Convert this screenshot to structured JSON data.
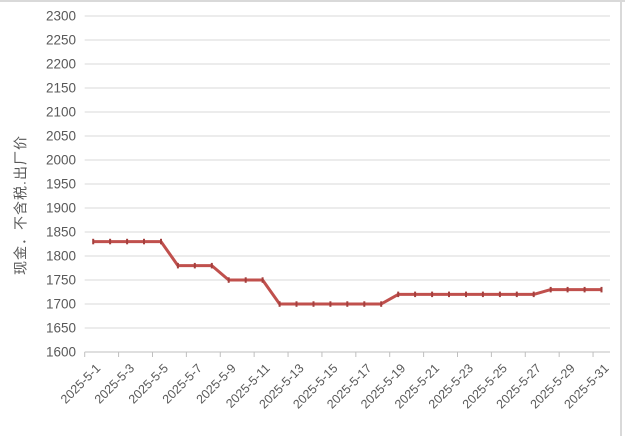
{
  "chart": {
    "y_axis_title": "现金．不含税.出厂价",
    "colors": {
      "line": "#c0504d",
      "marker": "#a5403e",
      "gridline": "#d9d9d9",
      "axis_line": "#bfbfbf",
      "tick_label": "#595959",
      "chart_border": "#d9d9d9",
      "background": "#ffffff"
    }
  },
  "chart_data": {
    "type": "line",
    "title": "",
    "ylabel": "现金．不含税.出厂价",
    "xlabel": "",
    "legend": "none",
    "grid": "horizontal",
    "ylim": [
      1600,
      2300
    ],
    "y_tick_step": 50,
    "y_tick_labels": [
      "2300",
      "2250",
      "2200",
      "2150",
      "2100",
      "2050",
      "2000",
      "1950",
      "1900",
      "1850",
      "1800",
      "1750",
      "1700",
      "1650",
      "1600"
    ],
    "x_tick_labels": [
      "2025-5-1",
      "2025-5-3",
      "2025-5-5",
      "2025-5-7",
      "2025-5-9",
      "2025-5-11",
      "2025-5-13",
      "2025-5-15",
      "2025-5-17",
      "2025-5-19",
      "2025-5-21",
      "2025-5-23",
      "2025-5-25",
      "2025-5-27",
      "2025-5-29",
      "2025-5-31"
    ],
    "x": [
      "2025-5-1",
      "2025-5-2",
      "2025-5-3",
      "2025-5-4",
      "2025-5-5",
      "2025-5-6",
      "2025-5-7",
      "2025-5-8",
      "2025-5-9",
      "2025-5-10",
      "2025-5-11",
      "2025-5-12",
      "2025-5-13",
      "2025-5-14",
      "2025-5-15",
      "2025-5-16",
      "2025-5-17",
      "2025-5-18",
      "2025-5-19",
      "2025-5-20",
      "2025-5-21",
      "2025-5-22",
      "2025-5-23",
      "2025-5-24",
      "2025-5-25",
      "2025-5-26",
      "2025-5-27",
      "2025-5-28",
      "2025-5-29",
      "2025-5-30",
      "2025-5-31"
    ],
    "series": [
      {
        "name": "现金．不含税.出厂价",
        "values": [
          1830,
          1830,
          1830,
          1830,
          1830,
          1780,
          1780,
          1780,
          1750,
          1750,
          1750,
          1700,
          1700,
          1700,
          1700,
          1700,
          1700,
          1700,
          1720,
          1720,
          1720,
          1720,
          1720,
          1720,
          1720,
          1720,
          1720,
          1730,
          1730,
          1730,
          1730
        ]
      }
    ]
  }
}
